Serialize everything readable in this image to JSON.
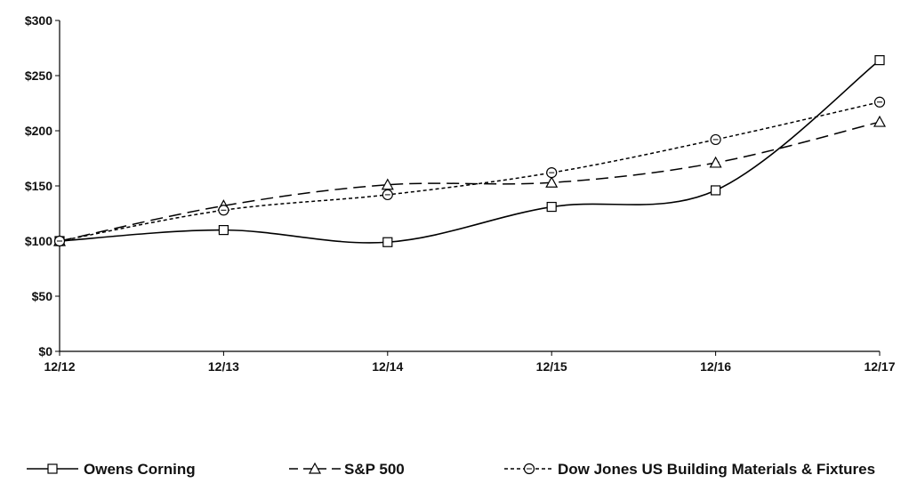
{
  "chart_data": {
    "type": "line",
    "title": "",
    "xlabel": "",
    "ylabel": "",
    "categories": [
      "12/12",
      "12/13",
      "12/14",
      "12/15",
      "12/16",
      "12/17"
    ],
    "ylim": [
      0,
      300
    ],
    "y_ticks": [
      0,
      50,
      100,
      150,
      200,
      250,
      300
    ],
    "y_tick_labels": [
      "$0",
      "$50",
      "$100",
      "$150",
      "$200",
      "$250",
      "$300"
    ],
    "grid": false,
    "legend_position": "bottom",
    "series": [
      {
        "name": "Owens Corning",
        "values": [
          100,
          110,
          99,
          131,
          146,
          264
        ],
        "line_style": "solid",
        "marker": "square",
        "color": "#000000"
      },
      {
        "name": "S&P 500",
        "values": [
          100,
          132,
          151,
          153,
          171,
          208
        ],
        "line_style": "long-dash",
        "marker": "triangle",
        "color": "#000000"
      },
      {
        "name": "Dow Jones US Building Materials & Fixtures",
        "values": [
          100,
          128,
          142,
          162,
          192,
          226
        ],
        "line_style": "short-dash",
        "marker": "circle",
        "color": "#000000"
      }
    ]
  }
}
